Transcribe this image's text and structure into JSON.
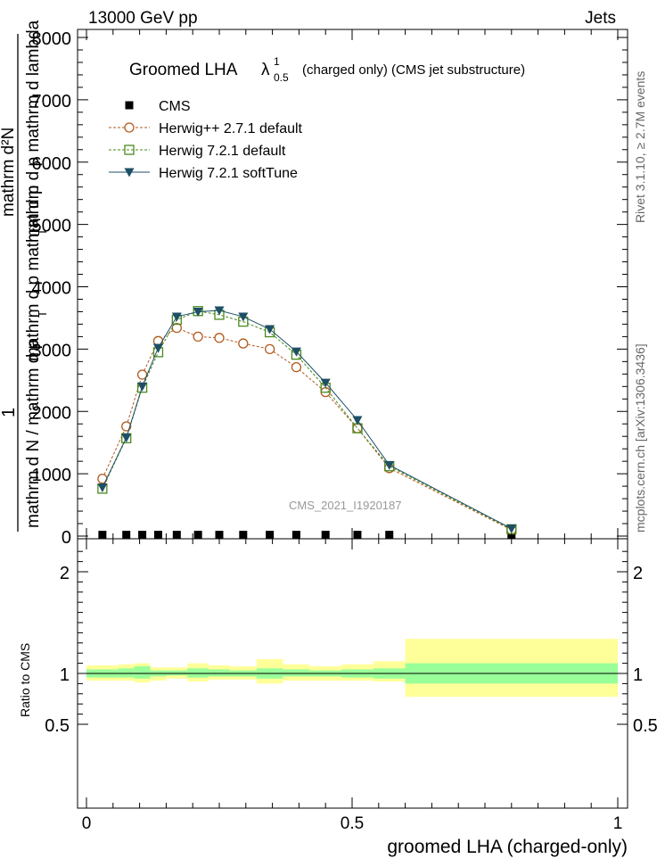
{
  "header": {
    "left": "13000 GeV pp",
    "right": "Jets"
  },
  "side": {
    "rivet": "Rivet 3.1.10, ≥ 2.7M events",
    "mcplots": "mcplots.cern.ch [arXiv:1306.3436]"
  },
  "chart_data": {
    "type": "line",
    "title": "Groomed LHA",
    "title_symbol": "λ",
    "title_sup": "1",
    "title_sub": "0.5",
    "title_suffix": "(charged only) (CMS jet substructure)",
    "watermark": "CMS_2021_I1920187",
    "ylabel_parts": {
      "one": "1",
      "num_upper": "mathrm d²N",
      "num_lower": "mathrm d N / mathrm d p",
      "den_upper": "mathrm d p  mathrm d lambda",
      "den_lower": "mathrm d p  mathrm d p",
      "sub": "T"
    },
    "xlabel": "groomed LHA (charged-only)",
    "ratio_ylabel": "Ratio to CMS",
    "xlim": [
      0,
      1
    ],
    "ylim_main": [
      0,
      8000
    ],
    "ylim_ratio": [
      0.35,
      2.3
    ],
    "x_ticks": [
      "0",
      "0.5",
      "1"
    ],
    "y_ticks_main": [
      "0",
      "1000",
      "2000",
      "3000",
      "4000",
      "5000",
      "6000",
      "7000",
      "8000"
    ],
    "y_ticks_ratio": [
      "0.5",
      "1",
      "2"
    ],
    "legend_position": "top-left",
    "bin_edges": [
      0,
      0.06,
      0.09,
      0.12,
      0.15,
      0.19,
      0.23,
      0.27,
      0.32,
      0.37,
      0.42,
      0.48,
      0.54,
      0.6,
      1.0
    ],
    "x": [
      0.03,
      0.075,
      0.105,
      0.135,
      0.17,
      0.21,
      0.25,
      0.295,
      0.345,
      0.395,
      0.45,
      0.51,
      0.57,
      0.8
    ],
    "series": [
      {
        "name": "CMS",
        "marker": "square",
        "color": "#000000",
        "values": [
          20,
          20,
          20,
          20,
          20,
          20,
          20,
          20,
          20,
          20,
          20,
          20,
          20,
          20
        ]
      },
      {
        "name": "Herwig++ 2.7.1 default",
        "marker": "circle-open",
        "color": "#b35a1f",
        "dash": true,
        "values": [
          920,
          1760,
          2590,
          3130,
          3340,
          3200,
          3180,
          3090,
          3000,
          2710,
          2310,
          1730,
          1090,
          100
        ]
      },
      {
        "name": "Herwig 7.2.1 default",
        "marker": "square-open",
        "color": "#4a8a1c",
        "dash": true,
        "values": [
          760,
          1570,
          2380,
          2950,
          3470,
          3610,
          3550,
          3440,
          3270,
          2910,
          2380,
          1730,
          1120,
          110
        ]
      },
      {
        "name": "Herwig 7.2.1 softTune",
        "marker": "triangle-down",
        "color": "#1e4f66",
        "dash": false,
        "values": [
          780,
          1580,
          2400,
          3020,
          3520,
          3600,
          3620,
          3520,
          3320,
          2960,
          2460,
          1860,
          1140,
          120
        ]
      }
    ],
    "ratio_bands": {
      "inner_low": [
        0.96,
        0.96,
        0.95,
        0.97,
        0.98,
        0.96,
        0.97,
        0.97,
        0.95,
        0.97,
        0.97,
        0.96,
        0.95,
        0.9
      ],
      "inner_high": [
        1.04,
        1.05,
        1.07,
        1.03,
        1.03,
        1.05,
        1.04,
        1.03,
        1.05,
        1.04,
        1.03,
        1.04,
        1.05,
        1.1
      ],
      "outer_low": [
        0.93,
        0.93,
        0.91,
        0.93,
        0.95,
        0.92,
        0.94,
        0.94,
        0.9,
        0.93,
        0.93,
        0.93,
        0.92,
        0.77
      ],
      "outer_high": [
        1.08,
        1.09,
        1.1,
        1.06,
        1.06,
        1.1,
        1.08,
        1.07,
        1.14,
        1.09,
        1.07,
        1.09,
        1.12,
        1.34
      ],
      "inner_color": "#99ff99",
      "outer_color": "#ffff99"
    }
  }
}
